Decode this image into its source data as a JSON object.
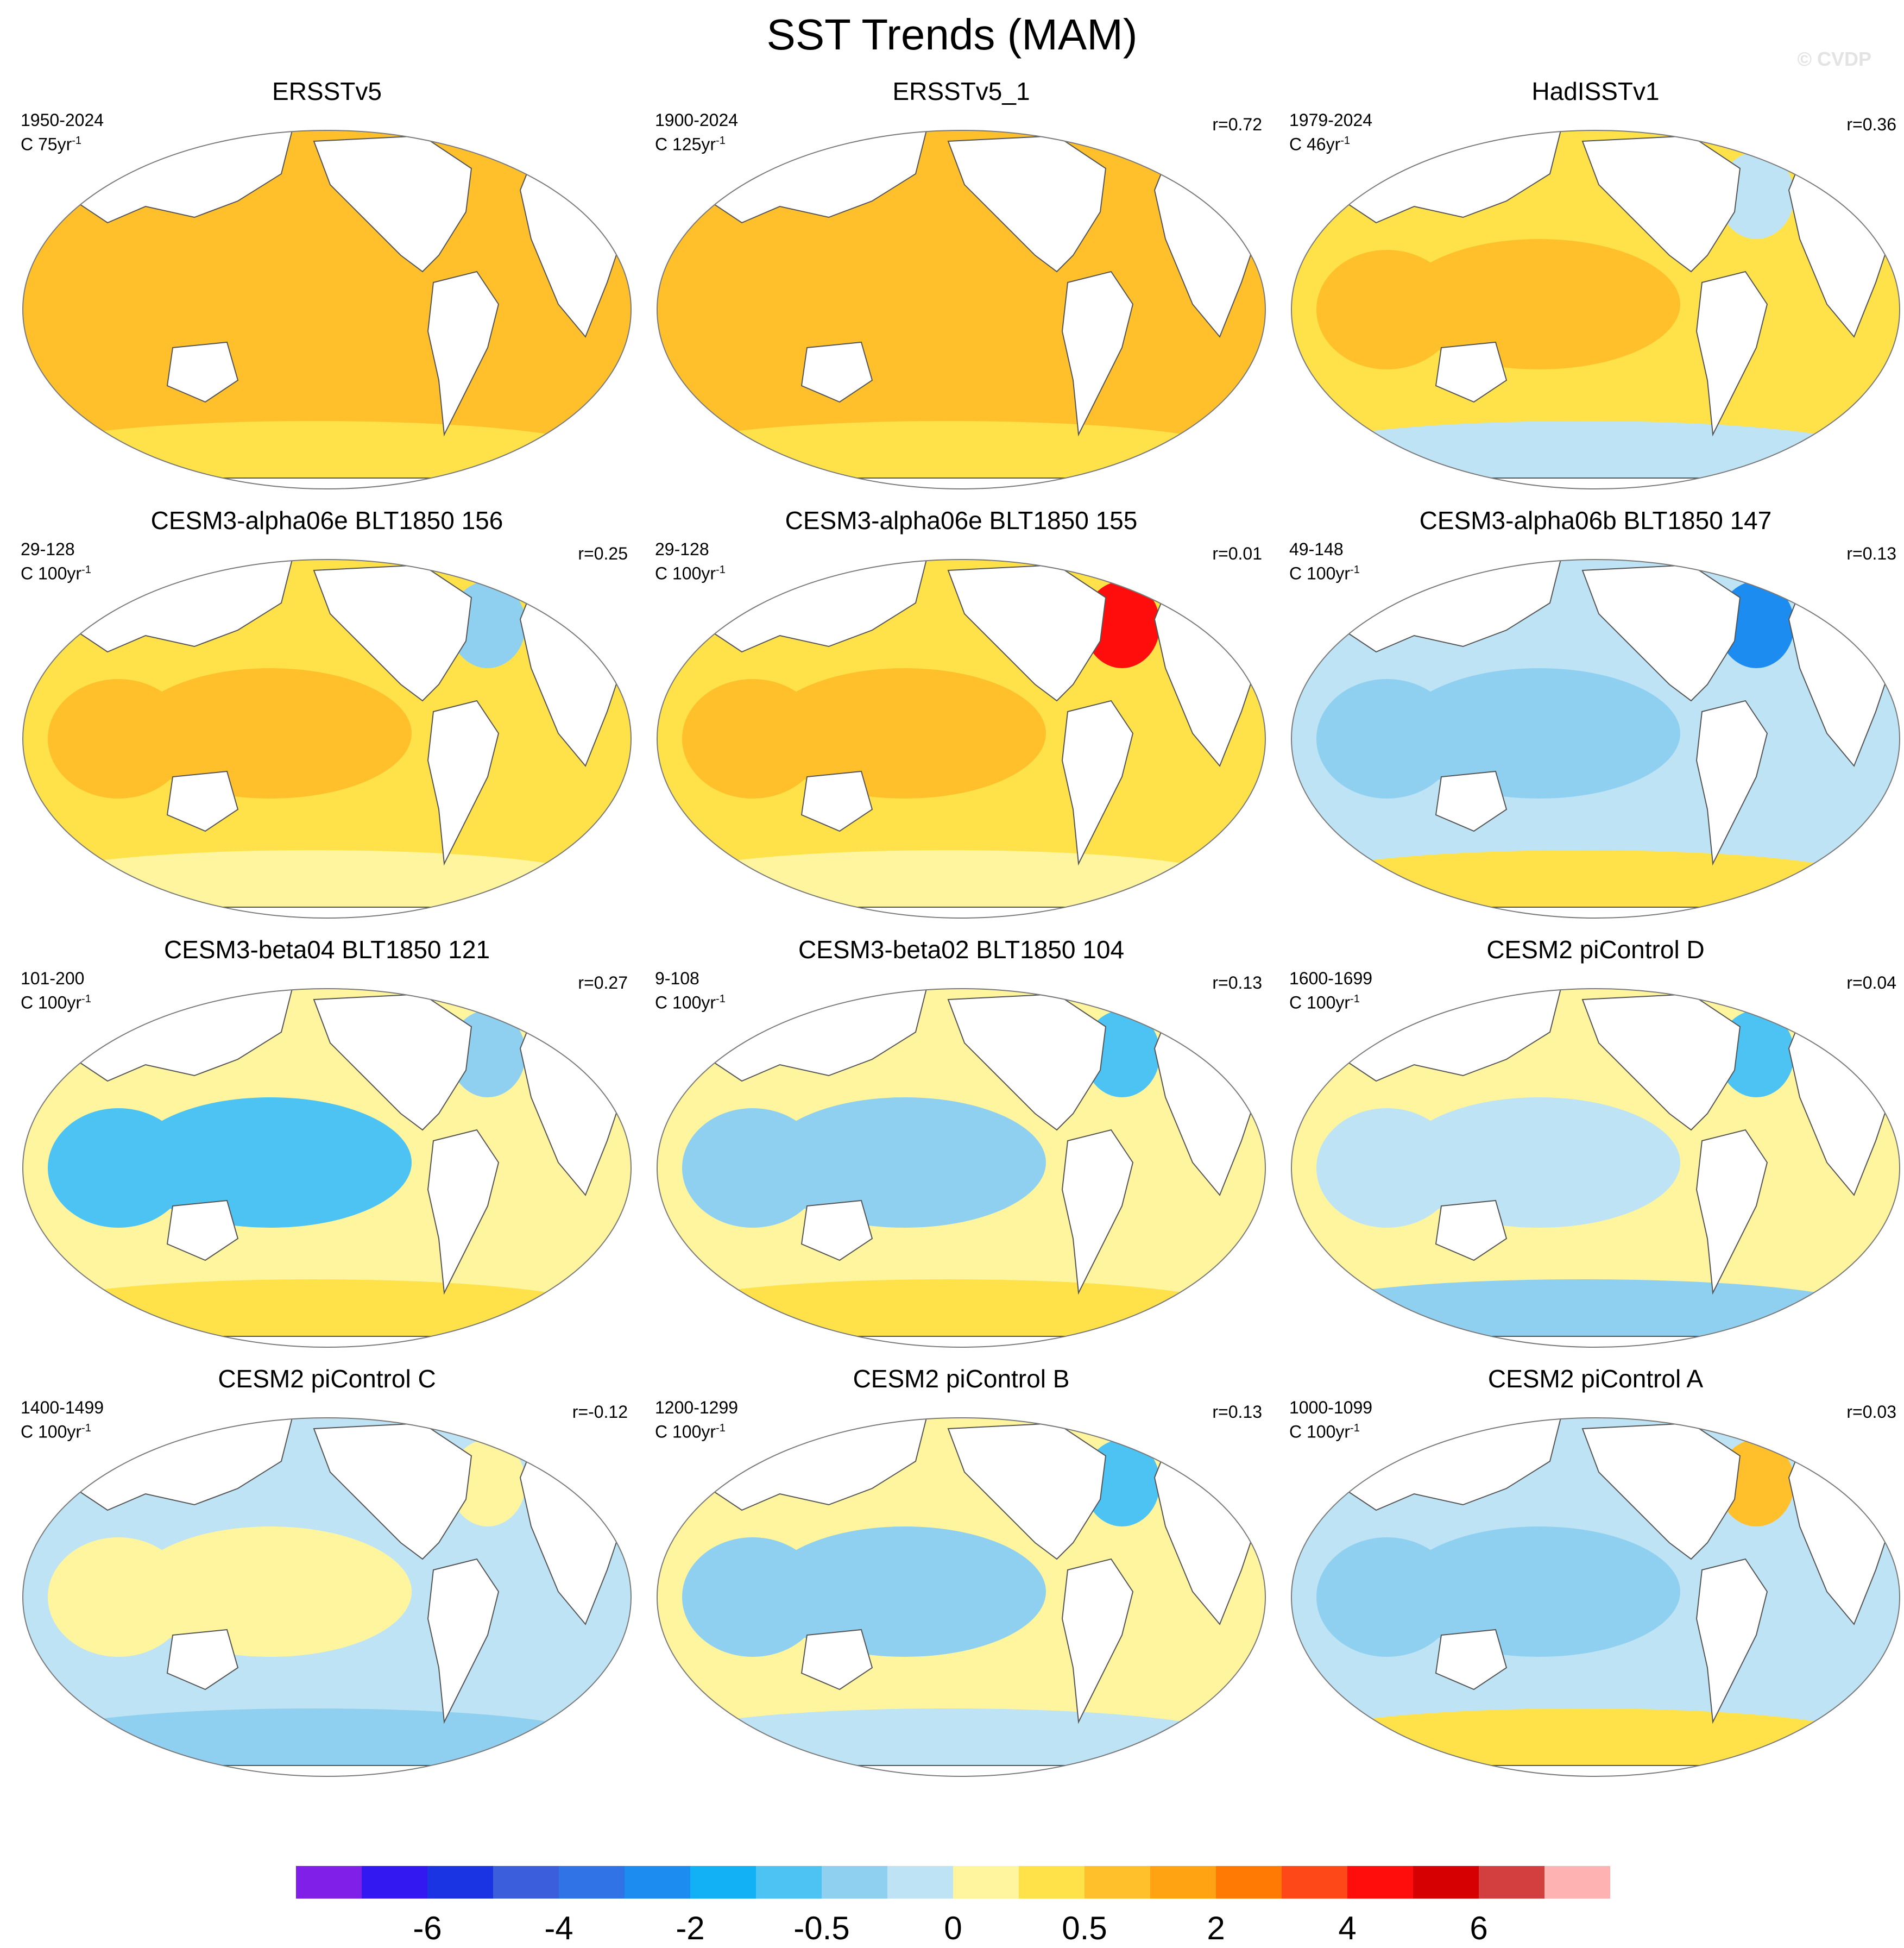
{
  "title": "SST Trends (MAM)",
  "credit": "© CVDP",
  "palette": {
    "land": "#ffffff",
    "coast": "#555555",
    "bins": [
      "#7f1fe8",
      "#3418f2",
      "#1a33e3",
      "#3a5edc",
      "#2f73e6",
      "#1c8cf0",
      "#12b0f5",
      "#4cc3f3",
      "#8fd0f0",
      "#bde3f5",
      "#fff59e",
      "#ffe24a",
      "#ffc02b",
      "#ffa313",
      "#ff7a05",
      "#ff4818",
      "#ff0d0d",
      "#d60003",
      "#d33f3f",
      "#ffb2b2"
    ]
  },
  "colorbar": {
    "labels": [
      "-6",
      "-4",
      "-2",
      "-0.5",
      "0",
      "0.5",
      "2",
      "4",
      "6"
    ]
  },
  "panels": [
    {
      "title": "ERSSTv5",
      "period": "1950-2024",
      "units": "C 75yr",
      "units_exp": "-1",
      "corr": "",
      "base": 12,
      "p1": 12,
      "p2": 11,
      "p3": 12
    },
    {
      "title": "ERSSTv5_1",
      "period": "1900-2024",
      "units": "C 125yr",
      "units_exp": "-1",
      "corr": "r=0.72",
      "base": 12,
      "p1": 12,
      "p2": 11,
      "p3": 12
    },
    {
      "title": "HadISSTv1",
      "period": "1979-2024",
      "units": "C 46yr",
      "units_exp": "-1",
      "corr": "r=0.36",
      "base": 11,
      "p1": 12,
      "p2": 9,
      "p3": 9
    },
    {
      "title": "CESM3-alpha06e BLT1850 156",
      "period": "29-128",
      "units": "C 100yr",
      "units_exp": "-1",
      "corr": "r=0.25",
      "base": 11,
      "p1": 12,
      "p2": 10,
      "p3": 8
    },
    {
      "title": "CESM3-alpha06e BLT1850 155",
      "period": "29-128",
      "units": "C 100yr",
      "units_exp": "-1",
      "corr": "r=0.01",
      "base": 11,
      "p1": 12,
      "p2": 10,
      "p3": 16
    },
    {
      "title": "CESM3-alpha06b BLT1850 147",
      "period": "49-148",
      "units": "C 100yr",
      "units_exp": "-1",
      "corr": "r=0.13",
      "base": 9,
      "p1": 8,
      "p2": 11,
      "p3": 5
    },
    {
      "title": "CESM3-beta04 BLT1850 121",
      "period": "101-200",
      "units": "C 100yr",
      "units_exp": "-1",
      "corr": "r=0.27",
      "base": 10,
      "p1": 7,
      "p2": 11,
      "p3": 8
    },
    {
      "title": "CESM3-beta02 BLT1850 104",
      "period": "9-108",
      "units": "C 100yr",
      "units_exp": "-1",
      "corr": "r=0.13",
      "base": 10,
      "p1": 8,
      "p2": 11,
      "p3": 7
    },
    {
      "title": "CESM2 piControl D",
      "period": "1600-1699",
      "units": "C 100yr",
      "units_exp": "-1",
      "corr": "r=0.04",
      "base": 10,
      "p1": 9,
      "p2": 8,
      "p3": 7
    },
    {
      "title": "CESM2 piControl C",
      "period": "1400-1499",
      "units": "C 100yr",
      "units_exp": "-1",
      "corr": "r=-0.12",
      "base": 9,
      "p1": 10,
      "p2": 8,
      "p3": 10
    },
    {
      "title": "CESM2 piControl B",
      "period": "1200-1299",
      "units": "C 100yr",
      "units_exp": "-1",
      "corr": "r=0.13",
      "base": 10,
      "p1": 8,
      "p2": 9,
      "p3": 7
    },
    {
      "title": "CESM2 piControl A",
      "period": "1000-1099",
      "units": "C 100yr",
      "units_exp": "-1",
      "corr": "r=0.03",
      "base": 9,
      "p1": 8,
      "p2": 11,
      "p3": 12
    }
  ]
}
